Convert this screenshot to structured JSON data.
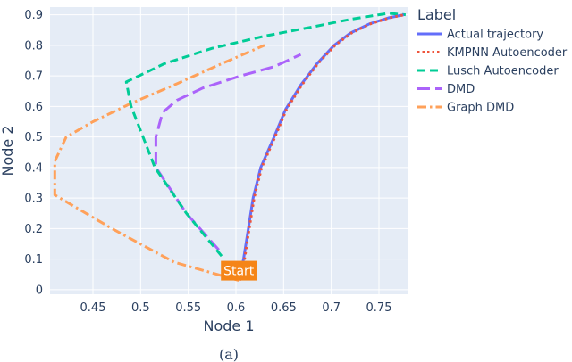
{
  "chart_data": {
    "type": "line",
    "title": "",
    "xlabel": "Node 1",
    "ylabel": "Node 2",
    "xlim": [
      0.405,
      0.78
    ],
    "ylim": [
      -0.015,
      0.925
    ],
    "x_ticks": [
      0.45,
      0.5,
      0.55,
      0.6,
      0.65,
      0.7,
      0.75
    ],
    "x_tick_labels": [
      "0.45",
      "0.5",
      "0.55",
      "0.6",
      "0.65",
      "0.7",
      "0.75"
    ],
    "y_ticks": [
      0,
      0.1,
      0.2,
      0.3,
      0.4,
      0.5,
      0.6,
      0.7,
      0.8,
      0.9
    ],
    "y_tick_labels": [
      "0",
      "0.1",
      "0.2",
      "0.3",
      "0.4",
      "0.5",
      "0.6",
      "0.7",
      "0.8",
      "0.9"
    ],
    "grid": true,
    "background": "#e5ecf6",
    "legend_title": "Label",
    "legend_position": "right",
    "series": [
      {
        "name": "Actual trajectory",
        "color": "#636efa",
        "dash": "solid",
        "points": [
          [
            0.603,
            0.03
          ],
          [
            0.608,
            0.1
          ],
          [
            0.613,
            0.2
          ],
          [
            0.618,
            0.3
          ],
          [
            0.626,
            0.4
          ],
          [
            0.64,
            0.5
          ],
          [
            0.652,
            0.59
          ],
          [
            0.668,
            0.67
          ],
          [
            0.685,
            0.74
          ],
          [
            0.703,
            0.8
          ],
          [
            0.72,
            0.84
          ],
          [
            0.74,
            0.87
          ],
          [
            0.76,
            0.89
          ],
          [
            0.776,
            0.9
          ]
        ]
      },
      {
        "name": "KMPNN Autoencoder",
        "color": "#ef553b",
        "dash": "dot",
        "points": [
          [
            0.604,
            0.03
          ],
          [
            0.609,
            0.1
          ],
          [
            0.614,
            0.2
          ],
          [
            0.619,
            0.3
          ],
          [
            0.627,
            0.4
          ],
          [
            0.641,
            0.5
          ],
          [
            0.653,
            0.59
          ],
          [
            0.669,
            0.67
          ],
          [
            0.686,
            0.74
          ],
          [
            0.704,
            0.8
          ],
          [
            0.721,
            0.84
          ],
          [
            0.741,
            0.87
          ],
          [
            0.761,
            0.89
          ],
          [
            0.777,
            0.9
          ]
        ]
      },
      {
        "name": "Lusch Autoencoder",
        "color": "#00cc96",
        "dash": "dash",
        "points": [
          [
            0.585,
            0.11
          ],
          [
            0.548,
            0.25
          ],
          [
            0.515,
            0.4
          ],
          [
            0.49,
            0.6
          ],
          [
            0.485,
            0.68
          ],
          [
            0.525,
            0.74
          ],
          [
            0.575,
            0.79
          ],
          [
            0.63,
            0.83
          ],
          [
            0.68,
            0.86
          ],
          [
            0.72,
            0.885
          ],
          [
            0.76,
            0.905
          ],
          [
            0.778,
            0.9
          ]
        ]
      },
      {
        "name": "DMD",
        "color": "#ab63fa",
        "dash": "longdash",
        "points": [
          [
            0.582,
            0.13
          ],
          [
            0.548,
            0.25
          ],
          [
            0.516,
            0.4
          ],
          [
            0.516,
            0.5
          ],
          [
            0.523,
            0.58
          ],
          [
            0.538,
            0.62
          ],
          [
            0.565,
            0.66
          ],
          [
            0.605,
            0.7
          ],
          [
            0.64,
            0.73
          ],
          [
            0.668,
            0.77
          ]
        ]
      },
      {
        "name": "Graph DMD",
        "color": "#ffa15a",
        "dash": "dashdot",
        "points": [
          [
            0.603,
            0.03
          ],
          [
            0.535,
            0.09
          ],
          [
            0.47,
            0.2
          ],
          [
            0.41,
            0.31
          ],
          [
            0.41,
            0.35
          ],
          [
            0.41,
            0.42
          ],
          [
            0.422,
            0.5
          ],
          [
            0.45,
            0.55
          ],
          [
            0.49,
            0.61
          ],
          [
            0.535,
            0.67
          ],
          [
            0.585,
            0.74
          ],
          [
            0.63,
            0.8
          ]
        ]
      }
    ],
    "annotations": [
      {
        "text": "Start",
        "x": 0.603,
        "y": 0.03,
        "bgcolor": "#f58518",
        "color": "#ffffff"
      }
    ]
  },
  "caption": "(a)"
}
